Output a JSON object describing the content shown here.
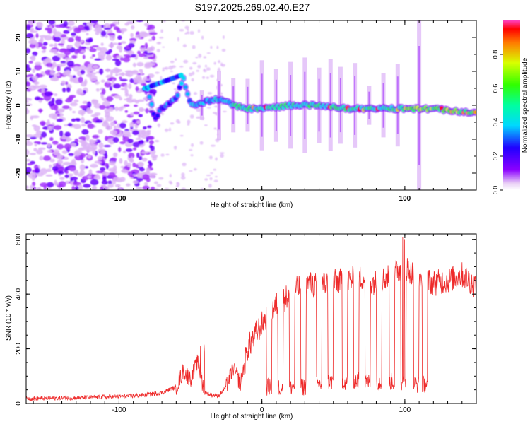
{
  "figure_title": "S197.2025.269.02.40.E27",
  "colors": {
    "snr_line": "#ee2a2a",
    "frame": "#000000"
  },
  "chart_data": [
    {
      "type": "heatmap",
      "title": "S197.2025.269.02.40.E27",
      "xlabel": "Height of straight line (km)",
      "ylabel": "Frequency (Hz)",
      "xlim": [
        -165,
        150
      ],
      "ylim": [
        -25,
        25
      ],
      "xticks": [
        -100,
        0,
        100
      ],
      "yticks": [
        -20,
        -10,
        0,
        10,
        20
      ],
      "colorbar": {
        "label": "Normalized spectral amplitude",
        "range": [
          0,
          1
        ],
        "ticks": [
          0.0,
          0.2,
          0.4,
          0.6,
          0.8
        ],
        "colormap": "rainbow"
      },
      "ridge": {
        "description": "narrow carrier line near 0 Hz, strongest (red) beyond +100 km",
        "points": [
          [
            -80,
            5
          ],
          [
            -75,
            -4
          ],
          [
            -70,
            -1
          ],
          [
            -60,
            2
          ],
          [
            -55,
            8
          ],
          [
            -50,
            0
          ],
          [
            -40,
            1
          ],
          [
            -30,
            2
          ],
          [
            -20,
            0
          ],
          [
            -10,
            -1
          ],
          [
            0,
            -1
          ],
          [
            20,
            0
          ],
          [
            40,
            0
          ],
          [
            60,
            -1
          ],
          [
            80,
            -1
          ],
          [
            100,
            -1
          ],
          [
            120,
            -1
          ],
          [
            140,
            -2
          ],
          [
            150,
            -2
          ]
        ]
      },
      "noise_region": {
        "x_from": -165,
        "x_to": -75
      },
      "vertical_streaks_km": [
        -42,
        -30,
        -20,
        -10,
        0,
        10,
        20,
        30,
        40,
        48,
        55,
        65,
        75,
        85,
        95,
        110
      ]
    },
    {
      "type": "line",
      "xlabel": "Height of straight line (km)",
      "ylabel": "SNR (10 * v/v)",
      "xlim": [
        -165,
        150
      ],
      "ylim": [
        0,
        620
      ],
      "xticks": [
        -100,
        0,
        100
      ],
      "yticks": [
        0,
        200,
        400,
        600
      ],
      "series": [
        {
          "name": "SNR",
          "color": "#ee2a2a",
          "x": [
            -165,
            -140,
            -120,
            -100,
            -90,
            -80,
            -70,
            -60,
            -55,
            -50,
            -45,
            -40,
            -35,
            -30,
            -25,
            -20,
            -15,
            -10,
            -5,
            0,
            5,
            10,
            15,
            20,
            30,
            40,
            50,
            60,
            70,
            80,
            90,
            100,
            105,
            110,
            120,
            130,
            140,
            150
          ],
          "values": [
            18,
            20,
            22,
            25,
            28,
            32,
            40,
            60,
            120,
            90,
            150,
            40,
            30,
            30,
            60,
            130,
            70,
            200,
            250,
            290,
            330,
            360,
            380,
            400,
            440,
            430,
            445,
            450,
            460,
            440,
            470,
            500,
            480,
            460,
            440,
            450,
            470,
            430
          ]
        }
      ],
      "dropouts": [
        {
          "x": 5,
          "value": 60
        },
        {
          "x": 13,
          "value": 60
        },
        {
          "x": 21,
          "value": 60
        },
        {
          "x": 29,
          "value": 60
        },
        {
          "x": 40,
          "value": 70
        },
        {
          "x": 48,
          "value": 80
        },
        {
          "x": 58,
          "value": 80
        },
        {
          "x": 66,
          "value": 85
        },
        {
          "x": 74,
          "value": 80
        },
        {
          "x": 82,
          "value": 80
        },
        {
          "x": 91,
          "value": 80
        },
        {
          "x": 99,
          "value": 80
        },
        {
          "x": 108,
          "value": 70
        },
        {
          "x": 114,
          "value": 70
        }
      ]
    }
  ]
}
